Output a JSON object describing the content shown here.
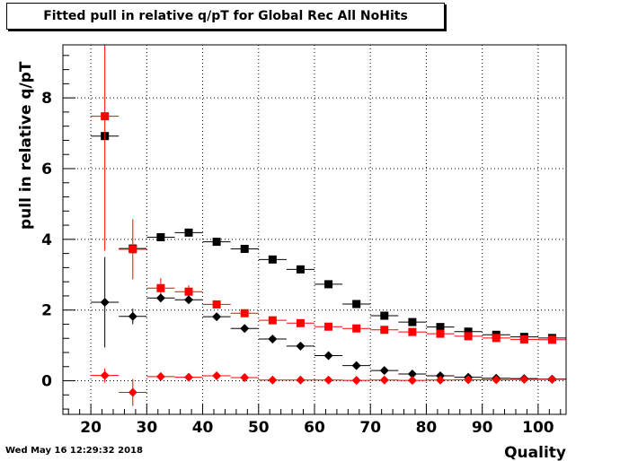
{
  "timestamp": "Wed May 16 12:29:32 2018",
  "chart_data": {
    "type": "scatter",
    "title": "Fitted pull in relative q/pT for Global Rec All NoHits",
    "xlabel": "Quality",
    "ylabel": "pull in relative q/pT",
    "xlim": [
      15,
      105
    ],
    "ylim": [
      -0.95,
      9.5
    ],
    "xticks": [
      20,
      30,
      40,
      50,
      60,
      70,
      80,
      90,
      100
    ],
    "yticks": [
      0,
      2,
      4,
      6,
      8
    ],
    "grid": true,
    "series": [
      {
        "marker": "square",
        "color": "#000000",
        "x": [
          22.5,
          27.5,
          32.5,
          37.5,
          42.5,
          47.5,
          52.5,
          57.5,
          62.5,
          67.5,
          72.5,
          77.5,
          82.5,
          87.5,
          92.5,
          97.5,
          102.5
        ],
        "y": [
          6.92,
          3.74,
          4.06,
          4.19,
          3.93,
          3.73,
          3.43,
          3.15,
          2.73,
          2.17,
          1.84,
          1.66,
          1.52,
          1.39,
          1.3,
          1.24,
          1.21
        ],
        "yerr": [
          0.06,
          0.07,
          0.05,
          0.05,
          0.04,
          0.04,
          0.04,
          0.04,
          0.04,
          0.04,
          0.03,
          0.03,
          0.03,
          0.03,
          0.03,
          0.03,
          0.03
        ]
      },
      {
        "marker": "square",
        "color": "#ff0000",
        "x": [
          22.5,
          27.5,
          32.5,
          37.5,
          42.5,
          47.5,
          52.5,
          57.5,
          62.5,
          67.5,
          72.5,
          77.5,
          82.5,
          87.5,
          92.5,
          97.5,
          102.5
        ],
        "y": [
          7.48,
          3.72,
          2.62,
          2.52,
          2.16,
          1.91,
          1.71,
          1.63,
          1.53,
          1.48,
          1.44,
          1.38,
          1.33,
          1.26,
          1.21,
          1.17,
          1.16
        ],
        "yerr": [
          3.8,
          0.85,
          0.28,
          0.18,
          0.1,
          0.06,
          0.05,
          0.04,
          0.04,
          0.04,
          0.03,
          0.03,
          0.03,
          0.03,
          0.03,
          0.03,
          0.03
        ]
      },
      {
        "marker": "diamond",
        "color": "#000000",
        "x": [
          22.5,
          27.5,
          32.5,
          37.5,
          42.5,
          47.5,
          52.5,
          57.5,
          62.5,
          67.5,
          72.5,
          77.5,
          82.5,
          87.5,
          92.5,
          97.5,
          102.5
        ],
        "y": [
          2.22,
          1.82,
          2.34,
          2.29,
          1.81,
          1.48,
          1.18,
          0.98,
          0.71,
          0.43,
          0.29,
          0.19,
          0.14,
          0.1,
          0.07,
          0.06,
          0.05
        ],
        "yerr": [
          1.28,
          0.22,
          0.06,
          0.05,
          0.04,
          0.03,
          0.03,
          0.03,
          0.02,
          0.02,
          0.02,
          0.02,
          0.02,
          0.02,
          0.02,
          0.02,
          0.02
        ]
      },
      {
        "marker": "diamond",
        "color": "#ff0000",
        "x": [
          22.5,
          27.5,
          32.5,
          37.5,
          42.5,
          47.5,
          52.5,
          57.5,
          62.5,
          67.5,
          72.5,
          77.5,
          82.5,
          87.5,
          92.5,
          97.5,
          102.5
        ],
        "y": [
          0.15,
          -0.33,
          0.12,
          0.1,
          0.14,
          0.09,
          0.02,
          0.02,
          0.02,
          0.01,
          0.02,
          0.01,
          0.02,
          0.03,
          0.03,
          0.04,
          0.04
        ],
        "yerr": [
          0.2,
          0.38,
          0.09,
          0.05,
          0.04,
          0.03,
          0.02,
          0.02,
          0.02,
          0.02,
          0.02,
          0.02,
          0.02,
          0.02,
          0.02,
          0.02,
          0.02
        ]
      }
    ]
  }
}
